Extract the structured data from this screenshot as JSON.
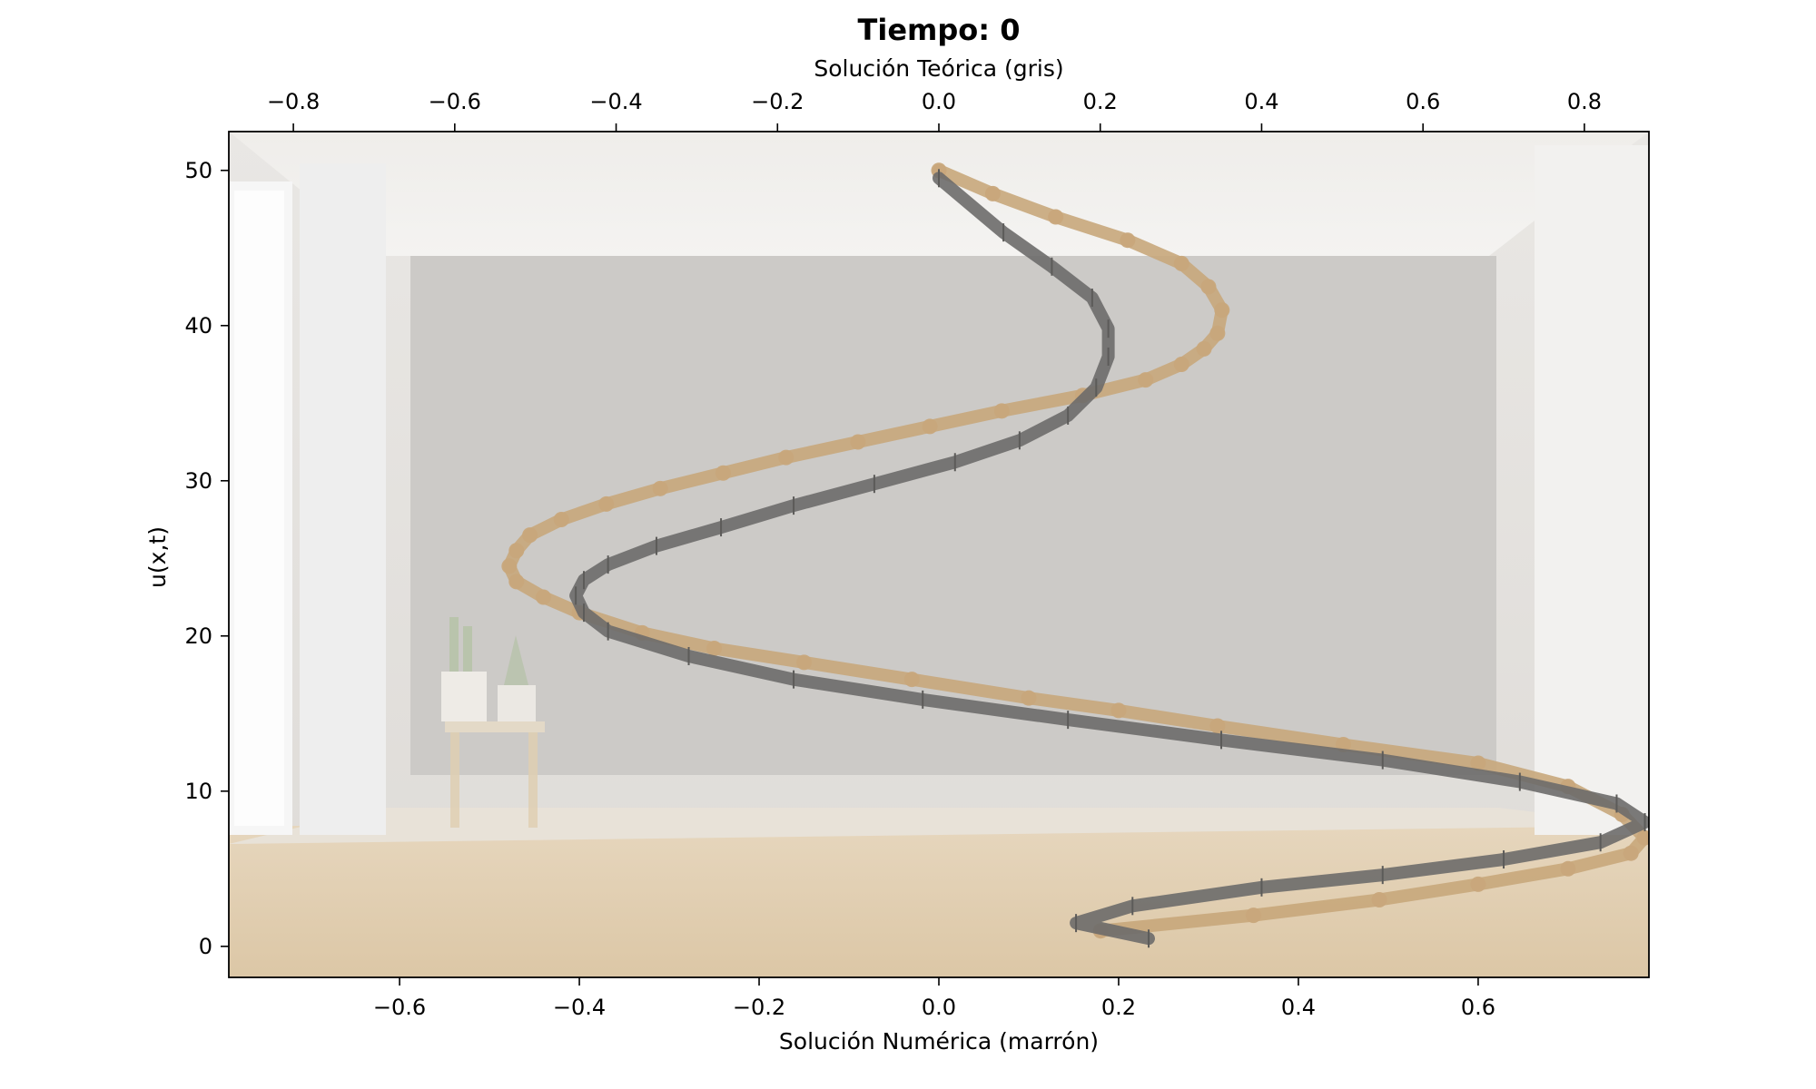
{
  "chart_data": {
    "type": "line",
    "title": "Tiempo: 0",
    "xlabel_bottom": "Solución Numérica (marrón)",
    "xlabel_top": "Solución Teórica (gris)",
    "ylabel": "u(x,t)",
    "xlim_bottom": [
      -0.79,
      0.79
    ],
    "xlim_top": [
      -0.88,
      0.88
    ],
    "ylim": [
      -2,
      52.5
    ],
    "xticks_bottom": [
      "−0.6",
      "−0.4",
      "−0.2",
      "0.0",
      "0.2",
      "0.4",
      "0.6"
    ],
    "xticks_top": [
      "−0.8",
      "−0.6",
      "−0.4",
      "−0.2",
      "0.0",
      "0.2",
      "0.4",
      "0.6",
      "0.8"
    ],
    "yticks": [
      "0",
      "10",
      "20",
      "30",
      "40",
      "50"
    ],
    "grid": false,
    "background": "blurred photo of an empty room (white walls, window on left, plant stand, wooden floor)",
    "series": [
      {
        "axis": "bottom",
        "color": "#c8a77b",
        "marker": "circle",
        "points": [
          [
            0.18,
            1
          ],
          [
            0.35,
            2
          ],
          [
            0.49,
            3
          ],
          [
            0.6,
            4
          ],
          [
            0.7,
            5
          ],
          [
            0.77,
            6
          ],
          [
            0.785,
            7
          ],
          [
            0.76,
            8.5
          ],
          [
            0.7,
            10.3
          ],
          [
            0.6,
            11.8
          ],
          [
            0.45,
            13.0
          ],
          [
            0.31,
            14.2
          ],
          [
            0.2,
            15.2
          ],
          [
            0.1,
            16.0
          ],
          [
            -0.03,
            17.2
          ],
          [
            -0.15,
            18.3
          ],
          [
            -0.25,
            19.2
          ],
          [
            -0.33,
            20.2
          ],
          [
            -0.4,
            21.5
          ],
          [
            -0.44,
            22.5
          ],
          [
            -0.47,
            23.5
          ],
          [
            -0.478,
            24.5
          ],
          [
            -0.47,
            25.5
          ],
          [
            -0.455,
            26.5
          ],
          [
            -0.42,
            27.5
          ],
          [
            -0.37,
            28.5
          ],
          [
            -0.31,
            29.5
          ],
          [
            -0.24,
            30.5
          ],
          [
            -0.17,
            31.5
          ],
          [
            -0.09,
            32.5
          ],
          [
            -0.01,
            33.5
          ],
          [
            0.07,
            34.5
          ],
          [
            0.16,
            35.5
          ],
          [
            0.23,
            36.5
          ],
          [
            0.27,
            37.5
          ],
          [
            0.295,
            38.5
          ],
          [
            0.31,
            39.5
          ],
          [
            0.315,
            41
          ],
          [
            0.3,
            42.5
          ],
          [
            0.27,
            44
          ],
          [
            0.21,
            45.5
          ],
          [
            0.13,
            47
          ],
          [
            0.06,
            48.5
          ],
          [
            0.0,
            50
          ]
        ]
      },
      {
        "axis": "top",
        "color": "#6d6c6a",
        "marker": "vertical tick",
        "points": [
          [
            0.26,
            0.5
          ],
          [
            0.17,
            1.5
          ],
          [
            0.24,
            2.6
          ],
          [
            0.4,
            3.8
          ],
          [
            0.55,
            4.6
          ],
          [
            0.7,
            5.6
          ],
          [
            0.82,
            6.7
          ],
          [
            0.875,
            8
          ],
          [
            0.84,
            9.2
          ],
          [
            0.72,
            10.6
          ],
          [
            0.55,
            12.0
          ],
          [
            0.35,
            13.3
          ],
          [
            0.16,
            14.6
          ],
          [
            -0.02,
            15.9
          ],
          [
            -0.18,
            17.2
          ],
          [
            -0.31,
            18.7
          ],
          [
            -0.41,
            20.3
          ],
          [
            -0.44,
            21.5
          ],
          [
            -0.45,
            22.6
          ],
          [
            -0.44,
            23.6
          ],
          [
            -0.41,
            24.6
          ],
          [
            -0.35,
            25.8
          ],
          [
            -0.27,
            27.0
          ],
          [
            -0.18,
            28.4
          ],
          [
            -0.08,
            29.8
          ],
          [
            0.02,
            31.2
          ],
          [
            0.1,
            32.6
          ],
          [
            0.16,
            34.2
          ],
          [
            0.195,
            36.0
          ],
          [
            0.21,
            38.0
          ],
          [
            0.21,
            39.8
          ],
          [
            0.19,
            41.8
          ],
          [
            0.14,
            43.8
          ],
          [
            0.08,
            46.0
          ],
          [
            0.0,
            49.5
          ]
        ]
      }
    ]
  }
}
